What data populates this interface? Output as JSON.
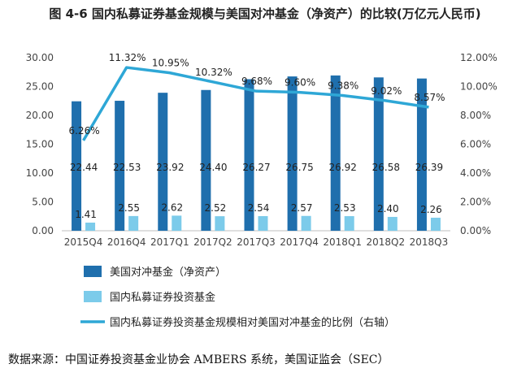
{
  "title": "图 4-6  国内私募证券基金规模与美国对冲基金（净资产）的比较(万亿元人民币)",
  "source": "数据来源：中国证券投资基金业协会 AMBERS 系统，美国证监会（SEC）",
  "colors": {
    "us": "#1f6fad",
    "cn": "#7ccbea",
    "line": "#2ea7d6"
  },
  "chart_data": {
    "type": "bar",
    "categories": [
      "2015Q4",
      "2016Q4",
      "2017Q1",
      "2017Q2",
      "2017Q3",
      "2017Q4",
      "2018Q1",
      "2018Q2",
      "2018Q3"
    ],
    "series": [
      {
        "name": "美国对冲基金（净资产）",
        "type": "bar",
        "axis": "left",
        "values": [
          22.44,
          22.53,
          23.92,
          24.4,
          26.27,
          26.75,
          26.92,
          26.58,
          26.39
        ],
        "labels": [
          "22.44",
          "22.53",
          "23.92",
          "24.40",
          "26.27",
          "26.75",
          "26.92",
          "26.58",
          "26.39"
        ]
      },
      {
        "name": "国内私募证券投资基金",
        "type": "bar",
        "axis": "left",
        "values": [
          1.41,
          2.55,
          2.62,
          2.52,
          2.54,
          2.57,
          2.53,
          2.4,
          2.26
        ],
        "labels": [
          "1.41",
          "2.55",
          "2.62",
          "2.52",
          "2.54",
          "2.57",
          "2.53",
          "2.40",
          "2.26"
        ]
      },
      {
        "name": "国内私募证券投资基金规模相对美国对冲基金的比例（右轴）",
        "type": "line",
        "axis": "right",
        "values": [
          6.26,
          11.32,
          10.95,
          10.32,
          9.68,
          9.6,
          9.38,
          9.02,
          8.57
        ],
        "labels": [
          "6.26%",
          "11.32%",
          "10.95%",
          "10.32%",
          "9.68%",
          "9.60%",
          "9.38%",
          "9.02%",
          "8.57%"
        ]
      }
    ],
    "y_left": {
      "range": [
        0,
        30
      ],
      "ticks": [
        "0.00",
        "5.00",
        "10.00",
        "15.00",
        "20.00",
        "25.00",
        "30.00"
      ]
    },
    "y_right": {
      "range": [
        0,
        12
      ],
      "ticks": [
        "0.00%",
        "2.00%",
        "4.00%",
        "6.00%",
        "8.00%",
        "10.00%",
        "12.00%"
      ]
    },
    "grid": false,
    "legend_position": "bottom"
  }
}
